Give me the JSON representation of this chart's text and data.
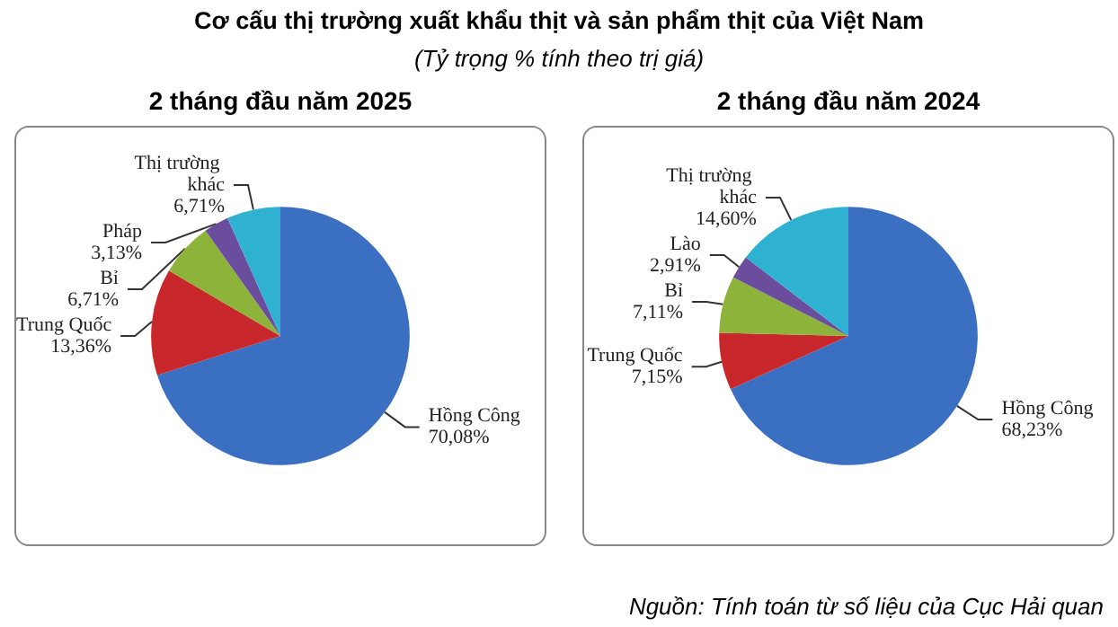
{
  "chart_data": [
    {
      "type": "other",
      "title": "Cơ cấu thị trường xuất khẩu thịt và sản phẩm thịt của Việt Nam",
      "subtitle": "(Tỷ trọng % tính theo trị giá)",
      "annotations": [
        "Nguồn: Tính toán từ số liệu của Cục Hải quan"
      ]
    },
    {
      "type": "pie",
      "title": "2 tháng đầu năm 2025",
      "categories": [
        "Hồng Công",
        "Trung Quốc",
        "Bỉ",
        "Pháp",
        "Thị trường khác"
      ],
      "values": [
        70.08,
        13.36,
        6.71,
        3.13,
        6.71
      ],
      "colors": [
        "#3b6fc2",
        "#c8282b",
        "#8db33b",
        "#6b4d9e",
        "#2fb2d2"
      ],
      "value_labels": [
        "70,08%",
        "13,36%",
        "6,71%",
        "3,13%",
        "6,71%"
      ]
    },
    {
      "type": "pie",
      "title": "2 tháng đầu năm 2024",
      "categories": [
        "Hồng Công",
        "Trung Quốc",
        "Bỉ",
        "Lào",
        "Thị trường khác"
      ],
      "values": [
        68.23,
        7.15,
        7.11,
        2.91,
        14.6
      ],
      "colors": [
        "#3b6fc2",
        "#c8282b",
        "#8db33b",
        "#6b4d9e",
        "#2fb2d2"
      ],
      "value_labels": [
        "68,23%",
        "7,15%",
        "7,11%",
        "2,91%",
        "14,60%"
      ]
    }
  ]
}
